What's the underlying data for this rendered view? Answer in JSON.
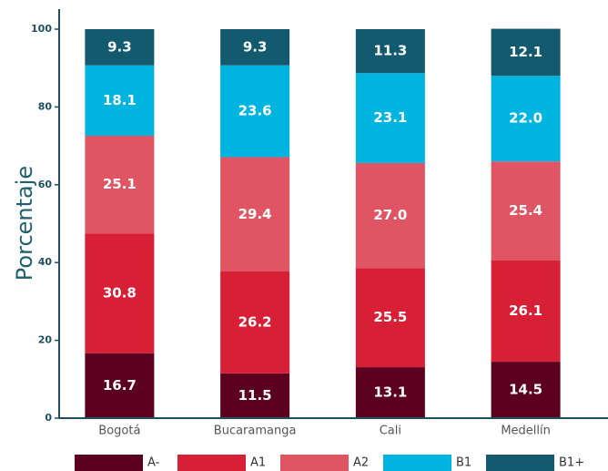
{
  "chart_data": {
    "type": "stacked_bar",
    "y_label": "Porcentaje",
    "categories": [
      "Bogotá",
      "Bucaramanga",
      "Cali",
      "Medellín"
    ],
    "series": [
      {
        "name": "A-",
        "color": "#5c0020",
        "values": [
          16.7,
          11.5,
          13.1,
          14.5
        ]
      },
      {
        "name": "A1",
        "color": "#d71f36",
        "values": [
          30.8,
          26.2,
          25.5,
          26.1
        ]
      },
      {
        "name": "A2",
        "color": "#e05563",
        "values": [
          25.1,
          29.4,
          27,
          25.4
        ],
        "value_labels": [
          "25.1",
          "29.4",
          "27.0",
          "25.4"
        ]
      },
      {
        "name": "B1",
        "color": "#00b4e0",
        "values": [
          18.1,
          23.6,
          23.1,
          22
        ],
        "value_labels": [
          "18.1",
          "23.6",
          "23.1",
          "22.0"
        ]
      },
      {
        "name": "B1+",
        "color": "#135a6e",
        "values": [
          9.3,
          9.3,
          11.3,
          12.1
        ]
      }
    ],
    "ylim": [
      0,
      100
    ],
    "yticks": [
      0,
      20,
      40,
      60,
      80,
      100
    ],
    "grid": false,
    "legend": "bottom"
  }
}
